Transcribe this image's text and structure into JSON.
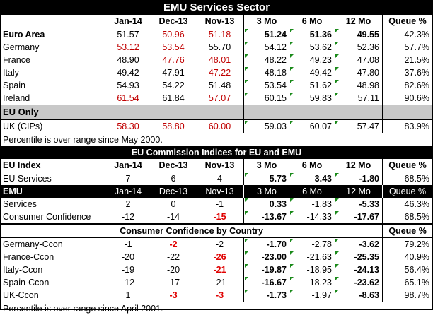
{
  "title": "EMU Services Sector",
  "header": {
    "label": "",
    "cols": [
      "Jan-14",
      "Dec-13",
      "Nov-13",
      "3 Mo",
      "6 Mo",
      "12 Mo",
      "Queue %"
    ]
  },
  "euro_rows": [
    {
      "label": "Euro Area",
      "v": [
        "51.57",
        "50.96",
        "51.18",
        "51.24",
        "51.36",
        "49.55",
        "42.3%"
      ]
    },
    {
      "label": "Germany",
      "v": [
        "53.12",
        "53.54",
        "55.70",
        "54.12",
        "53.62",
        "52.36",
        "57.7%"
      ]
    },
    {
      "label": "France",
      "v": [
        "48.90",
        "47.76",
        "48.01",
        "48.22",
        "49.23",
        "47.08",
        "21.5%"
      ]
    },
    {
      "label": "Italy",
      "v": [
        "49.42",
        "47.91",
        "47.22",
        "48.18",
        "49.42",
        "47.80",
        "37.6%"
      ]
    },
    {
      "label": "Spain",
      "v": [
        "54.93",
        "54.22",
        "51.48",
        "53.54",
        "51.62",
        "48.98",
        "82.6%"
      ]
    },
    {
      "label": "Ireland",
      "v": [
        "61.54",
        "61.84",
        "57.07",
        "60.15",
        "59.83",
        "57.11",
        "90.6%"
      ]
    }
  ],
  "eu_only_label": "EU Only",
  "uk_row": {
    "label": "UK (CIPs)",
    "v": [
      "58.30",
      "58.80",
      "60.00",
      "59.03",
      "60.07",
      "57.47",
      "83.9%"
    ]
  },
  "note1": "Percentile is over range since May 2000.",
  "commission_title": "EU Commission Indices for EU and EMU",
  "eu_index_header": {
    "label": "EU Index",
    "cols": [
      "Jan-14",
      "Dec-13",
      "Nov-13",
      "3 Mo",
      "6 Mo",
      "12 Mo",
      "Queue %"
    ]
  },
  "eu_services": {
    "label": "EU Services",
    "v": [
      "7",
      "6",
      "4",
      "5.73",
      "3.43",
      "-1.80",
      "68.5%"
    ]
  },
  "emu_header": {
    "label": "EMU",
    "cols": [
      "Jan-14",
      "Dec-13",
      "Nov-13",
      "3 Mo",
      "6 Mo",
      "12 Mo",
      "Queue %"
    ]
  },
  "emu_rows": [
    {
      "label": "Services",
      "v": [
        "2",
        "0",
        "-1",
        "0.33",
        "-1.83",
        "-5.33",
        "46.3%"
      ]
    },
    {
      "label": "Consumer Confidence",
      "v": [
        "-12",
        "-14",
        "-15",
        "-13.67",
        "-14.33",
        "-17.67",
        "68.5%"
      ]
    }
  ],
  "cc_title": "Consumer Confidence by Country",
  "cc_queue_label": "Queue %",
  "cc_rows": [
    {
      "label": "Germany-Ccon",
      "v": [
        "-1",
        "-2",
        "-2",
        "-1.70",
        "-2.78",
        "-3.62",
        "79.2%"
      ]
    },
    {
      "label": "France-Ccon",
      "v": [
        "-20",
        "-22",
        "-26",
        "-23.00",
        "-21.63",
        "-25.35",
        "40.9%"
      ]
    },
    {
      "label": "Italy-Ccon",
      "v": [
        "-19",
        "-20",
        "-21",
        "-19.87",
        "-18.95",
        "-24.13",
        "56.4%"
      ]
    },
    {
      "label": "Spain-Ccon",
      "v": [
        "-12",
        "-17",
        "-21",
        "-16.67",
        "-18.23",
        "-23.62",
        "65.1%"
      ]
    },
    {
      "label": "UK-Ccon",
      "v": [
        "1",
        "-3",
        "-3",
        "-1.73",
        "-1.97",
        "-8.63",
        "98.7%"
      ]
    }
  ],
  "note2": "Percentile is over range since April 2001.",
  "colors": {
    "red": "#c00000",
    "bright_red": "#e00000",
    "gray_band": "#c8c8c8",
    "triangle": "#1a8a1a"
  }
}
